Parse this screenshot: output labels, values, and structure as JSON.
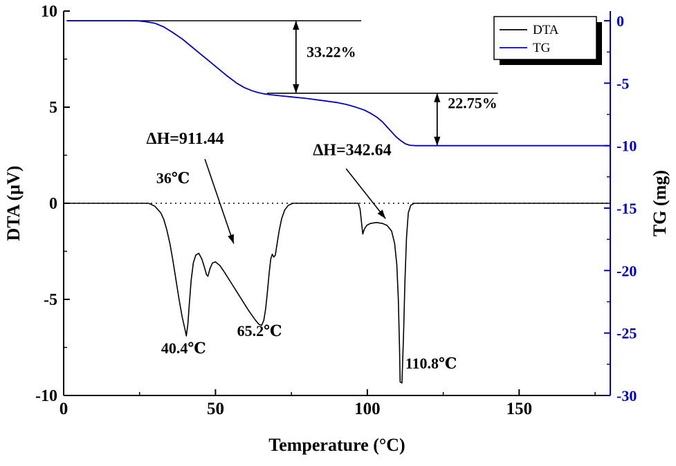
{
  "figure": {
    "background": "#ffffff",
    "accent_blue": "#0000CC"
  },
  "chart_data": {
    "type": "line",
    "title": "",
    "xlabel": "Temperature (°C)",
    "ylabel_left": "DTA (μV)",
    "ylabel_right": "TG (mg)",
    "xlim": [
      0,
      180
    ],
    "x_major_ticks": [
      0,
      50,
      100,
      150
    ],
    "x_minor_step": 25,
    "ylim_left": [
      -10,
      10
    ],
    "y_left_major_ticks": [
      -10,
      -5,
      0,
      5,
      10
    ],
    "y_left_minor_step": 2.5,
    "ylim_right": [
      -30,
      0
    ],
    "y_right_major_ticks": [
      0,
      -5,
      -10,
      -15,
      -20,
      -25,
      -30
    ],
    "y_right_minor_step": 2.5,
    "grid": false,
    "legend": {
      "position": "top-right",
      "entries": [
        {
          "label": "DTA",
          "color": "#000000"
        },
        {
          "label": "TG",
          "color": "#0000CC"
        }
      ]
    },
    "series": [
      {
        "name": "DTA",
        "axis": "left",
        "color": "#000000",
        "width": 1.6,
        "points": [
          [
            1,
            0
          ],
          [
            28,
            0
          ],
          [
            30,
            -0.15
          ],
          [
            32,
            -0.5
          ],
          [
            33,
            -0.85
          ],
          [
            34,
            -1.4
          ],
          [
            35,
            -2.1
          ],
          [
            36,
            -3
          ],
          [
            37,
            -4
          ],
          [
            38,
            -5
          ],
          [
            39,
            -5.9
          ],
          [
            40,
            -6.6
          ],
          [
            40.4,
            -6.9
          ],
          [
            40.9,
            -6.3
          ],
          [
            41.4,
            -5.2
          ],
          [
            42,
            -4
          ],
          [
            42.7,
            -3.1
          ],
          [
            43.5,
            -2.7
          ],
          [
            44.5,
            -2.6
          ],
          [
            45.5,
            -2.9
          ],
          [
            46.3,
            -3.3
          ],
          [
            47,
            -3.7
          ],
          [
            47.5,
            -3.8
          ],
          [
            48.2,
            -3.4
          ],
          [
            49,
            -3.1
          ],
          [
            50,
            -3.05
          ],
          [
            51.5,
            -3.25
          ],
          [
            53,
            -3.6
          ],
          [
            55,
            -4.1
          ],
          [
            57,
            -4.6
          ],
          [
            59,
            -5.1
          ],
          [
            61,
            -5.6
          ],
          [
            63,
            -6.05
          ],
          [
            64.3,
            -6.3
          ],
          [
            65.2,
            -6.35
          ],
          [
            65.9,
            -6.1
          ],
          [
            66.5,
            -5.5
          ],
          [
            67.1,
            -4.6
          ],
          [
            67.7,
            -3.6
          ],
          [
            68.2,
            -2.9
          ],
          [
            68.7,
            -2.65
          ],
          [
            69.2,
            -2.8
          ],
          [
            69.7,
            -2.7
          ],
          [
            70.3,
            -2.1
          ],
          [
            71,
            -1.4
          ],
          [
            71.8,
            -0.8
          ],
          [
            72.8,
            -0.35
          ],
          [
            74,
            -0.1
          ],
          [
            75.5,
            0
          ],
          [
            97,
            0
          ],
          [
            97.6,
            -0.3
          ],
          [
            98.1,
            -1
          ],
          [
            98.5,
            -1.6
          ],
          [
            99,
            -1.35
          ],
          [
            99.8,
            -1.15
          ],
          [
            101,
            -1.05
          ],
          [
            103,
            -1
          ],
          [
            105,
            -1.05
          ],
          [
            106.5,
            -1.15
          ],
          [
            108,
            -1.45
          ],
          [
            109,
            -2.1
          ],
          [
            109.7,
            -3.2
          ],
          [
            110.2,
            -5
          ],
          [
            110.6,
            -7.5
          ],
          [
            110.8,
            -9.3
          ],
          [
            111.4,
            -9.35
          ],
          [
            111.9,
            -7
          ],
          [
            112.4,
            -4
          ],
          [
            112.9,
            -1.8
          ],
          [
            113.5,
            -0.5
          ],
          [
            114.3,
            -0.1
          ],
          [
            115.5,
            0
          ],
          [
            180,
            0
          ]
        ]
      },
      {
        "name": "TG",
        "axis": "right",
        "color": "#0000CC",
        "width": 1.8,
        "points": [
          [
            1,
            0
          ],
          [
            24,
            0
          ],
          [
            27,
            -0.08
          ],
          [
            30,
            -0.2
          ],
          [
            33,
            -0.5
          ],
          [
            36,
            -0.95
          ],
          [
            39,
            -1.45
          ],
          [
            42,
            -2.05
          ],
          [
            45,
            -2.65
          ],
          [
            48,
            -3.25
          ],
          [
            51,
            -3.85
          ],
          [
            54,
            -4.45
          ],
          [
            57,
            -5
          ],
          [
            59.5,
            -5.35
          ],
          [
            62,
            -5.6
          ],
          [
            64,
            -5.75
          ],
          [
            66,
            -5.85
          ],
          [
            68,
            -5.92
          ],
          [
            71,
            -6
          ],
          [
            75,
            -6.1
          ],
          [
            80,
            -6.22
          ],
          [
            85,
            -6.38
          ],
          [
            90,
            -6.55
          ],
          [
            93,
            -6.7
          ],
          [
            96,
            -6.9
          ],
          [
            99,
            -7.15
          ],
          [
            101,
            -7.4
          ],
          [
            103,
            -7.7
          ],
          [
            105,
            -8.1
          ],
          [
            106.5,
            -8.5
          ],
          [
            108,
            -8.9
          ],
          [
            109.5,
            -9.3
          ],
          [
            111,
            -9.6
          ],
          [
            112.5,
            -9.85
          ],
          [
            114,
            -9.97
          ],
          [
            116,
            -10
          ],
          [
            180,
            -10
          ]
        ]
      }
    ],
    "zero_dotted_line": {
      "axis": "left",
      "value": 0
    },
    "reference_lines": [
      {
        "axis": "right",
        "value": 0,
        "x_from": 1,
        "x_to": 98
      },
      {
        "axis": "right",
        "value": -5.8,
        "x_from": 67,
        "x_to": 143
      }
    ],
    "mass_loss_arrows": [
      {
        "label": "33.22%",
        "x": 76.5,
        "from": 0,
        "to": -5.8,
        "label_x": 80,
        "label_y": -2.9
      },
      {
        "label": "22.75%",
        "x": 123,
        "from": -5.8,
        "to": -10,
        "label_x": 126.5,
        "label_y": -7.0
      }
    ],
    "enthalpy_labels": [
      {
        "label": "ΔH=911.44",
        "x": 40,
        "y": 3.1,
        "arrow": {
          "x1": 46.5,
          "y1": 2.3,
          "x2": 56,
          "y2": -2.1
        }
      },
      {
        "label": "ΔH=342.64",
        "x": 95,
        "y": 2.5,
        "arrow": {
          "x1": 93,
          "y1": 1.8,
          "x2": 106,
          "y2": -0.8
        }
      }
    ],
    "peak_labels": [
      {
        "label": "36℃",
        "x": 36,
        "y": 1.05
      },
      {
        "label": "40.4℃",
        "x": 39.5,
        "y": -7.8
      },
      {
        "label": "65.2℃",
        "x": 64.5,
        "y": -6.9
      },
      {
        "label": "110.8℃",
        "x": 121,
        "y": -8.6
      }
    ]
  }
}
